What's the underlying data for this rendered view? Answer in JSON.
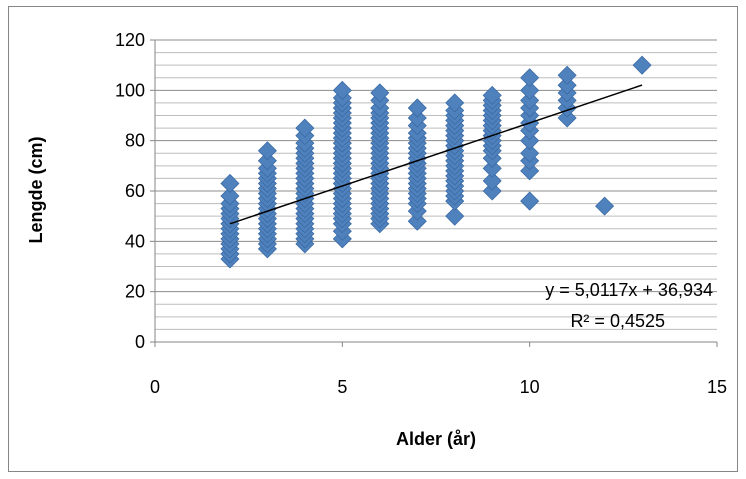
{
  "chart_data": {
    "type": "scatter",
    "xlabel": "Alder (år)",
    "ylabel": "Lengde (cm)",
    "xlim": [
      0,
      15
    ],
    "ylim": [
      0,
      120
    ],
    "x_ticks": [
      0,
      5,
      10,
      15
    ],
    "y_ticks": [
      0,
      20,
      40,
      60,
      80,
      100,
      120
    ],
    "x_tick_labels": [
      "0",
      "5",
      "10",
      "15"
    ],
    "y_tick_labels": [
      "0",
      "20",
      "40",
      "60",
      "80",
      "100",
      "120"
    ],
    "y_minor_step": 5,
    "grid": true,
    "marker": "diamond",
    "marker_color": "#4F81BD",
    "marker_edge_color": "#3A6AA5",
    "series": [
      {
        "points": [
          [
            2,
            33
          ],
          [
            2,
            35
          ],
          [
            2,
            37
          ],
          [
            2,
            39
          ],
          [
            2,
            41
          ],
          [
            2,
            43
          ],
          [
            2,
            45
          ],
          [
            2,
            47
          ],
          [
            2,
            49
          ],
          [
            2,
            51
          ],
          [
            2,
            53
          ],
          [
            2,
            55
          ],
          [
            2,
            58
          ],
          [
            2,
            63
          ],
          [
            3,
            37
          ],
          [
            3,
            39
          ],
          [
            3,
            41
          ],
          [
            3,
            43
          ],
          [
            3,
            45
          ],
          [
            3,
            47
          ],
          [
            3,
            49
          ],
          [
            3,
            51
          ],
          [
            3,
            53
          ],
          [
            3,
            55
          ],
          [
            3,
            57
          ],
          [
            3,
            59
          ],
          [
            3,
            61
          ],
          [
            3,
            63
          ],
          [
            3,
            65
          ],
          [
            3,
            67
          ],
          [
            3,
            69
          ],
          [
            3,
            72
          ],
          [
            3,
            76
          ],
          [
            4,
            39
          ],
          [
            4,
            41
          ],
          [
            4,
            43
          ],
          [
            4,
            45
          ],
          [
            4,
            47
          ],
          [
            4,
            49
          ],
          [
            4,
            51
          ],
          [
            4,
            53
          ],
          [
            4,
            55
          ],
          [
            4,
            57
          ],
          [
            4,
            59
          ],
          [
            4,
            61
          ],
          [
            4,
            63
          ],
          [
            4,
            65
          ],
          [
            4,
            67
          ],
          [
            4,
            69
          ],
          [
            4,
            71
          ],
          [
            4,
            73
          ],
          [
            4,
            75
          ],
          [
            4,
            77
          ],
          [
            4,
            79
          ],
          [
            4,
            82
          ],
          [
            4,
            85
          ],
          [
            5,
            41
          ],
          [
            5,
            44
          ],
          [
            5,
            47
          ],
          [
            5,
            49
          ],
          [
            5,
            51
          ],
          [
            5,
            53
          ],
          [
            5,
            55
          ],
          [
            5,
            57
          ],
          [
            5,
            59
          ],
          [
            5,
            61
          ],
          [
            5,
            63
          ],
          [
            5,
            65
          ],
          [
            5,
            67
          ],
          [
            5,
            69
          ],
          [
            5,
            71
          ],
          [
            5,
            73
          ],
          [
            5,
            75
          ],
          [
            5,
            77
          ],
          [
            5,
            79
          ],
          [
            5,
            81
          ],
          [
            5,
            83
          ],
          [
            5,
            85
          ],
          [
            5,
            87
          ],
          [
            5,
            89
          ],
          [
            5,
            91
          ],
          [
            5,
            93
          ],
          [
            5,
            95
          ],
          [
            5,
            97
          ],
          [
            5,
            100
          ],
          [
            6,
            47
          ],
          [
            6,
            49
          ],
          [
            6,
            51
          ],
          [
            6,
            53
          ],
          [
            6,
            55
          ],
          [
            6,
            57
          ],
          [
            6,
            59
          ],
          [
            6,
            61
          ],
          [
            6,
            63
          ],
          [
            6,
            65
          ],
          [
            6,
            67
          ],
          [
            6,
            69
          ],
          [
            6,
            71
          ],
          [
            6,
            73
          ],
          [
            6,
            75
          ],
          [
            6,
            77
          ],
          [
            6,
            79
          ],
          [
            6,
            81
          ],
          [
            6,
            83
          ],
          [
            6,
            85
          ],
          [
            6,
            87
          ],
          [
            6,
            89
          ],
          [
            6,
            91
          ],
          [
            6,
            93
          ],
          [
            6,
            96
          ],
          [
            6,
            99
          ],
          [
            7,
            48
          ],
          [
            7,
            52
          ],
          [
            7,
            55
          ],
          [
            7,
            57
          ],
          [
            7,
            59
          ],
          [
            7,
            61
          ],
          [
            7,
            63
          ],
          [
            7,
            65
          ],
          [
            7,
            67
          ],
          [
            7,
            69
          ],
          [
            7,
            71
          ],
          [
            7,
            73
          ],
          [
            7,
            75
          ],
          [
            7,
            77
          ],
          [
            7,
            79
          ],
          [
            7,
            81
          ],
          [
            7,
            83
          ],
          [
            7,
            86
          ],
          [
            7,
            89
          ],
          [
            7,
            93
          ],
          [
            8,
            50
          ],
          [
            8,
            56
          ],
          [
            8,
            58
          ],
          [
            8,
            60
          ],
          [
            8,
            62
          ],
          [
            8,
            64
          ],
          [
            8,
            66
          ],
          [
            8,
            68
          ],
          [
            8,
            70
          ],
          [
            8,
            72
          ],
          [
            8,
            74
          ],
          [
            8,
            76
          ],
          [
            8,
            78
          ],
          [
            8,
            80
          ],
          [
            8,
            82
          ],
          [
            8,
            84
          ],
          [
            8,
            86
          ],
          [
            8,
            88
          ],
          [
            8,
            90
          ],
          [
            8,
            92
          ],
          [
            8,
            95
          ],
          [
            9,
            60
          ],
          [
            9,
            64
          ],
          [
            9,
            69
          ],
          [
            9,
            73
          ],
          [
            9,
            76
          ],
          [
            9,
            78
          ],
          [
            9,
            80
          ],
          [
            9,
            82
          ],
          [
            9,
            84
          ],
          [
            9,
            86
          ],
          [
            9,
            88
          ],
          [
            9,
            90
          ],
          [
            9,
            92
          ],
          [
            9,
            94
          ],
          [
            9,
            96
          ],
          [
            9,
            98
          ],
          [
            10,
            56
          ],
          [
            10,
            68
          ],
          [
            10,
            72
          ],
          [
            10,
            75
          ],
          [
            10,
            80
          ],
          [
            10,
            84
          ],
          [
            10,
            87
          ],
          [
            10,
            90
          ],
          [
            10,
            93
          ],
          [
            10,
            96
          ],
          [
            10,
            100
          ],
          [
            10,
            105
          ],
          [
            11,
            89
          ],
          [
            11,
            93
          ],
          [
            11,
            96
          ],
          [
            11,
            99
          ],
          [
            11,
            102
          ],
          [
            11,
            106
          ],
          [
            12,
            54
          ],
          [
            13,
            110
          ]
        ]
      }
    ],
    "trendline": {
      "slope": 5.0117,
      "intercept": 36.934,
      "x_from": 2,
      "x_to": 13,
      "color": "#000000"
    },
    "annotations": {
      "equation": "y = 5,0117x + 36,934",
      "r_squared": "R² = 0,4525"
    }
  }
}
